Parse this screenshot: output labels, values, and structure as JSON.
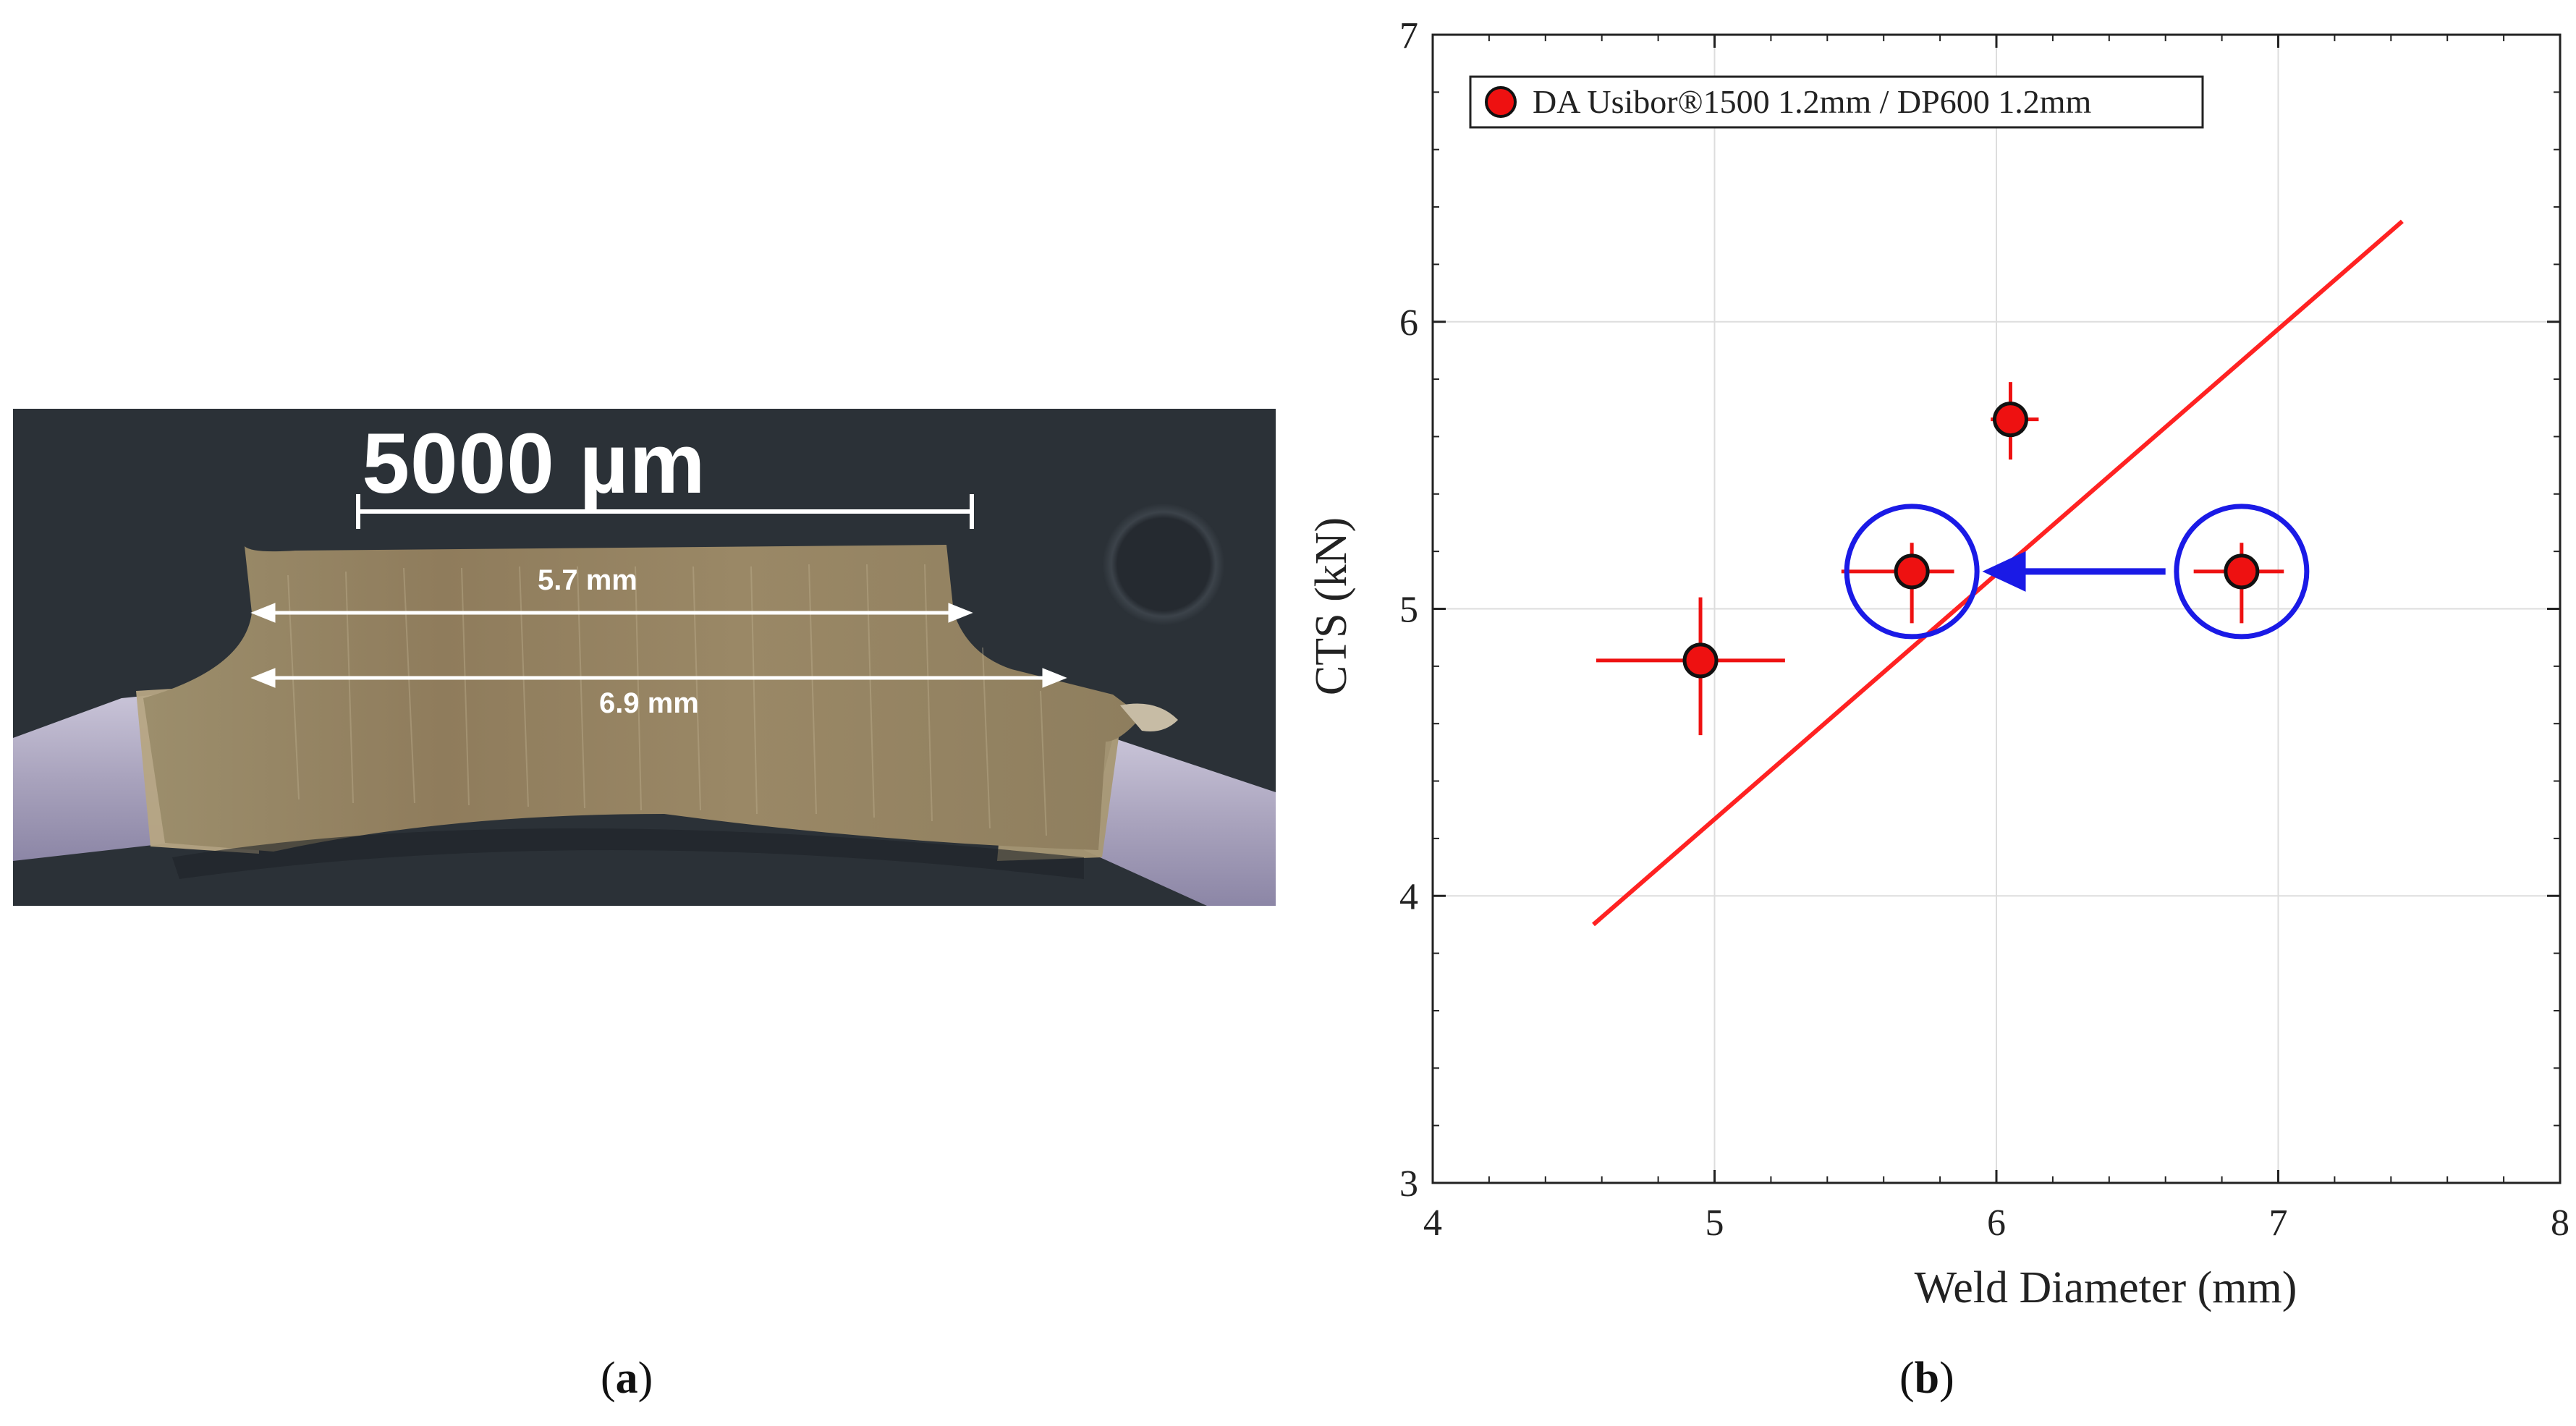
{
  "panel_a": {
    "scale_bar_label": "5000 µm",
    "dim_top_label": "5.7 mm",
    "dim_bottom_label": "6.9 mm",
    "caption_letter": "a"
  },
  "panel_b": {
    "caption_letter": "b"
  },
  "colors": {
    "data_red": "#ee1111",
    "fit_red": "#ff2222",
    "highlight_blue": "#1a1ae6",
    "grid": "#dddddd"
  },
  "chart_data": {
    "type": "scatter",
    "title": "",
    "xlabel": "Weld Diameter (mm)",
    "ylabel": "CTS (kN)",
    "xlim": [
      4,
      8
    ],
    "ylim": [
      3,
      7
    ],
    "xticks": [
      4,
      5,
      6,
      7,
      8
    ],
    "yticks": [
      3,
      4,
      5,
      6,
      7
    ],
    "grid": true,
    "legend_position": "top-left",
    "series": [
      {
        "name": "DA Usibor®1500 1.2mm / DP600 1.2mm",
        "points": [
          {
            "x": 4.95,
            "y": 4.82,
            "xerr": [
              0.37,
              0.3
            ],
            "yerr": [
              0.26,
              0.22
            ]
          },
          {
            "x": 5.7,
            "y": 5.13,
            "xerr": [
              0.25,
              0.15
            ],
            "yerr": [
              0.18,
              0.1
            ]
          },
          {
            "x": 6.05,
            "y": 5.66,
            "xerr": [
              0.07,
              0.1
            ],
            "yerr": [
              0.14,
              0.13
            ]
          },
          {
            "x": 6.87,
            "y": 5.13,
            "xerr": [
              0.17,
              0.15
            ],
            "yerr": [
              0.18,
              0.1
            ]
          }
        ]
      }
    ],
    "fit_line": {
      "x": [
        4.57,
        7.44
      ],
      "y": [
        3.9,
        6.35
      ]
    },
    "highlight_circles": [
      {
        "x": 5.7,
        "y": 5.13
      },
      {
        "x": 6.87,
        "y": 5.13
      }
    ],
    "arrow": {
      "from": [
        6.6,
        5.13
      ],
      "to": [
        5.95,
        5.13
      ]
    }
  }
}
